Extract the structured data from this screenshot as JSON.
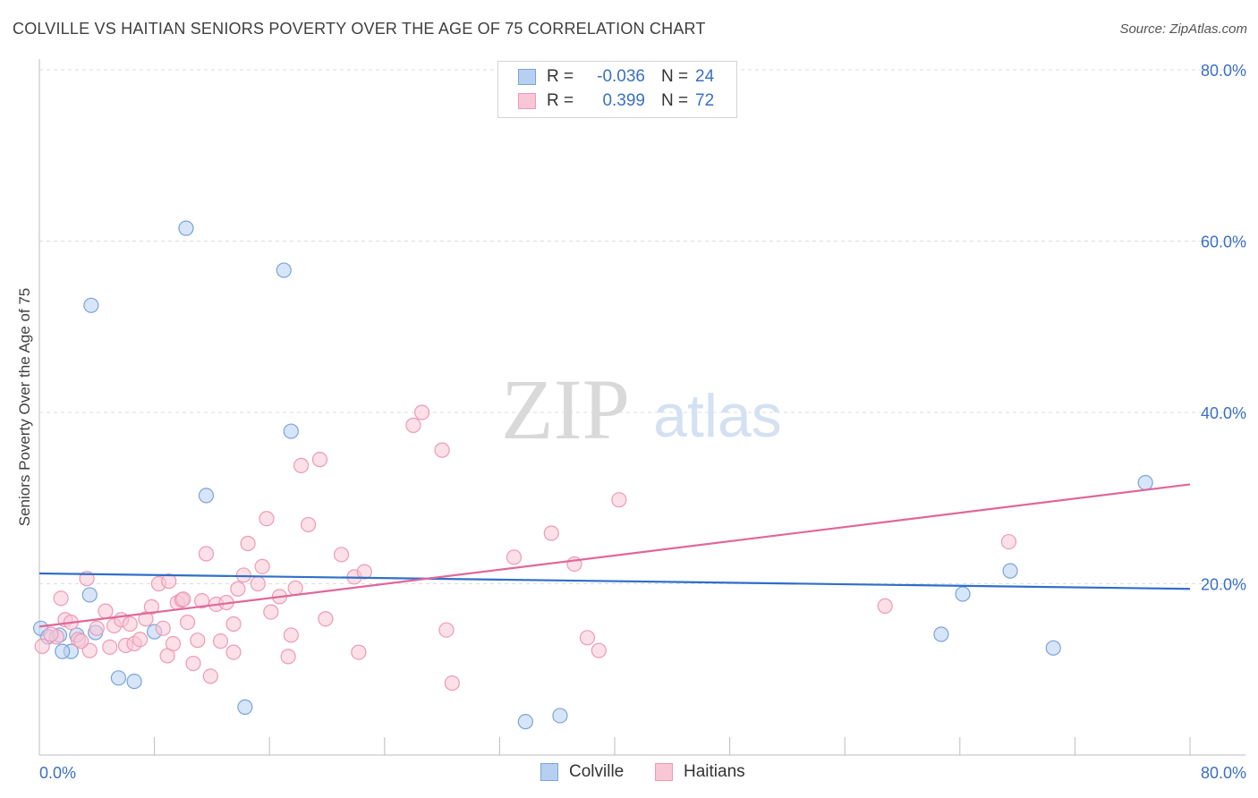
{
  "title": "COLVILLE VS HAITIAN SENIORS POVERTY OVER THE AGE OF 75 CORRELATION CHART",
  "source": "Source: ZipAtlas.com",
  "watermark": {
    "zip": "ZIP",
    "atlas": "atlas"
  },
  "legend": {
    "colville": {
      "r_label": "R =",
      "r_value": "-0.036",
      "n_label": "N =",
      "n_value": "24"
    },
    "haitians": {
      "r_label": "R =",
      "r_value": "0.399",
      "n_label": "N =",
      "n_value": "72"
    }
  },
  "bottom_legend": {
    "colville": "Colville",
    "haitians": "Haitians"
  },
  "colors": {
    "colville_fill": "#b7d0f2",
    "colville_stroke": "#7aa4db",
    "colville_line": "#2f6fc8",
    "haitians_fill": "#f8c6d5",
    "haitians_stroke": "#ee9ab5",
    "haitians_line": "#e0679a",
    "axis_label": "#3a6fc4",
    "grid": "#dcdcdc"
  },
  "chart_data": {
    "type": "scatter",
    "title": "COLVILLE VS HAITIAN SENIORS POVERTY OVER THE AGE OF 75 CORRELATION CHART",
    "xlabel": "",
    "ylabel": "Seniors Poverty Over the Age of 75",
    "xlim": [
      0,
      80
    ],
    "ylim": [
      0,
      80
    ],
    "x_tick_labels": [
      "0.0%",
      "80.0%"
    ],
    "y_tick_labels": [
      "20.0%",
      "40.0%",
      "60.0%",
      "80.0%"
    ],
    "y_ticks": [
      20,
      40,
      60,
      80
    ],
    "grid": true,
    "legend_position": "top-center",
    "series": [
      {
        "name": "Colville",
        "r": -0.036,
        "n": 24,
        "trend": [
          [
            0,
            21.2
          ],
          [
            80,
            19.4
          ]
        ],
        "points": [
          [
            0.1,
            14.8
          ],
          [
            0.6,
            13.8
          ],
          [
            1.4,
            14.0
          ],
          [
            3.6,
            52.5
          ],
          [
            3.5,
            18.7
          ],
          [
            2.2,
            12.1
          ],
          [
            3.9,
            14.3
          ],
          [
            5.5,
            9.0
          ],
          [
            6.6,
            8.6
          ],
          [
            8.0,
            14.4
          ],
          [
            10.2,
            61.5
          ],
          [
            11.6,
            30.3
          ],
          [
            14.3,
            5.6
          ],
          [
            17.0,
            56.6
          ],
          [
            17.5,
            37.8
          ],
          [
            33.8,
            3.9
          ],
          [
            36.2,
            4.6
          ],
          [
            62.7,
            14.1
          ],
          [
            64.2,
            18.8
          ],
          [
            67.5,
            21.5
          ],
          [
            70.5,
            12.5
          ],
          [
            76.9,
            31.8
          ],
          [
            1.6,
            12.1
          ],
          [
            2.6,
            14.0
          ]
        ]
      },
      {
        "name": "Haitians",
        "r": 0.399,
        "n": 72,
        "trend": [
          [
            0,
            15.0
          ],
          [
            80,
            31.6
          ]
        ],
        "points": [
          [
            0.2,
            12.7
          ],
          [
            1.2,
            13.8
          ],
          [
            1.5,
            18.3
          ],
          [
            1.8,
            15.8
          ],
          [
            2.2,
            15.5
          ],
          [
            2.7,
            13.5
          ],
          [
            3.3,
            20.6
          ],
          [
            3.5,
            12.2
          ],
          [
            4.0,
            14.8
          ],
          [
            4.6,
            16.8
          ],
          [
            4.9,
            12.6
          ],
          [
            5.2,
            15.1
          ],
          [
            5.7,
            15.8
          ],
          [
            6.0,
            12.8
          ],
          [
            6.3,
            15.3
          ],
          [
            6.6,
            13.0
          ],
          [
            7.0,
            13.5
          ],
          [
            7.4,
            15.9
          ],
          [
            7.8,
            17.3
          ],
          [
            8.3,
            20.0
          ],
          [
            8.6,
            14.8
          ],
          [
            8.9,
            11.6
          ],
          [
            9.3,
            13.0
          ],
          [
            9.6,
            17.8
          ],
          [
            9.9,
            18.1
          ],
          [
            10.3,
            15.5
          ],
          [
            10.7,
            10.7
          ],
          [
            11.0,
            13.4
          ],
          [
            11.3,
            18.0
          ],
          [
            11.6,
            23.5
          ],
          [
            11.9,
            9.2
          ],
          [
            12.3,
            17.6
          ],
          [
            12.6,
            13.3
          ],
          [
            13.0,
            17.8
          ],
          [
            13.5,
            15.3
          ],
          [
            13.8,
            19.4
          ],
          [
            14.2,
            21.0
          ],
          [
            14.5,
            24.7
          ],
          [
            15.2,
            20.0
          ],
          [
            15.5,
            22.0
          ],
          [
            15.8,
            27.6
          ],
          [
            16.1,
            16.7
          ],
          [
            16.7,
            18.5
          ],
          [
            17.3,
            11.5
          ],
          [
            17.5,
            14.0
          ],
          [
            17.8,
            19.5
          ],
          [
            18.2,
            33.8
          ],
          [
            18.7,
            26.9
          ],
          [
            19.5,
            34.5
          ],
          [
            19.9,
            15.9
          ],
          [
            21.0,
            23.4
          ],
          [
            21.9,
            20.8
          ],
          [
            22.2,
            12.0
          ],
          [
            22.6,
            21.4
          ],
          [
            26.0,
            38.5
          ],
          [
            26.6,
            40.0
          ],
          [
            28.0,
            35.6
          ],
          [
            28.3,
            14.6
          ],
          [
            28.7,
            8.4
          ],
          [
            33.0,
            23.1
          ],
          [
            35.6,
            25.9
          ],
          [
            37.2,
            22.3
          ],
          [
            38.1,
            13.7
          ],
          [
            38.9,
            12.2
          ],
          [
            40.3,
            29.8
          ],
          [
            58.8,
            17.4
          ],
          [
            67.4,
            24.9
          ],
          [
            0.8,
            14.1
          ],
          [
            2.9,
            13.3
          ],
          [
            10.0,
            18.2
          ],
          [
            9.0,
            20.3
          ],
          [
            13.5,
            12.0
          ]
        ]
      }
    ]
  }
}
